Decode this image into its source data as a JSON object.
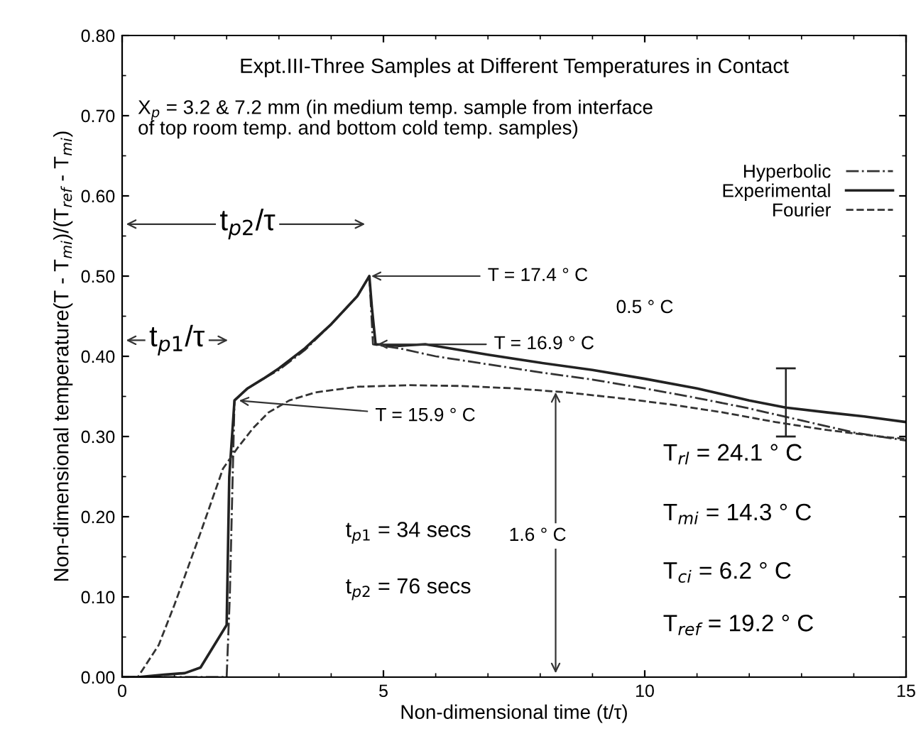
{
  "chart_data": {
    "type": "line",
    "title": "Expt.III-Three Samples at Different Temperatures in Contact",
    "subtitle": "X$_{p}$ = 3.2 & 7.2 mm (in medium temp. sample from interface\nof top room temp. and bottom cold temp. samples)",
    "xlabel": "Non-dimensional time (t/τ)",
    "ylabel": "Non-dimensional temperature(T - T$_{mi}$)/(T$_{ref}$ - T$_{mi}$)",
    "xlim": [
      0,
      15
    ],
    "xticks": [
      0,
      5,
      10,
      15
    ],
    "ylim": [
      0,
      0.8
    ],
    "yticks": [
      {
        "value": 0,
        "label": "0.00"
      },
      {
        "value": 0.1,
        "label": "0.10"
      },
      {
        "value": 0.2,
        "label": "0.20"
      },
      {
        "value": 0.3,
        "label": "0.30"
      },
      {
        "value": 0.4,
        "label": "0.40"
      },
      {
        "value": 0.5,
        "label": "0.50"
      },
      {
        "value": 0.6,
        "label": "0.60"
      },
      {
        "value": 0.7,
        "label": "0.70"
      },
      {
        "value": 0.8,
        "label": "0.80"
      }
    ],
    "grid": false,
    "legend": "top right",
    "series": [
      {
        "name": "Hyperbolic",
        "color": "#333333",
        "line_style": "dashdot",
        "x": [
          0,
          1.9,
          2.0,
          2.06,
          2.15,
          2.4,
          2.7,
          3,
          3.5,
          4,
          4.5,
          4.73,
          4.8,
          5.3,
          6,
          7,
          8,
          9,
          10,
          11,
          12,
          13,
          14,
          15
        ],
        "values": [
          0,
          0,
          0,
          0.1,
          0.345,
          0.36,
          0.372,
          0.383,
          0.408,
          0.44,
          0.475,
          0.5,
          0.415,
          0.41,
          0.4,
          0.39,
          0.38,
          0.371,
          0.36,
          0.348,
          0.335,
          0.32,
          0.305,
          0.295
        ]
      },
      {
        "name": "Experimental",
        "color": "#222222",
        "line_style": "solid",
        "x": [
          0,
          0.3,
          0.8,
          1.2,
          1.5,
          2.0,
          2.05,
          2.15,
          2.4,
          2.7,
          3.0,
          3.5,
          4.0,
          4.5,
          4.73,
          4.78,
          4.85,
          5.3,
          5.8,
          7,
          8,
          9,
          10,
          11,
          12,
          12.7,
          13.5,
          14.2,
          15
        ],
        "values": [
          0,
          0,
          0.003,
          0.005,
          0.012,
          0.065,
          0.25,
          0.345,
          0.36,
          0.372,
          0.385,
          0.41,
          0.44,
          0.475,
          0.5,
          0.46,
          0.415,
          0.413,
          0.415,
          0.402,
          0.392,
          0.383,
          0.372,
          0.36,
          0.345,
          0.336,
          0.33,
          0.325,
          0.318
        ],
        "errors": [
          null,
          null,
          null,
          null,
          null,
          null,
          null,
          null,
          null,
          null,
          null,
          null,
          null,
          null,
          null,
          null,
          null,
          null,
          null,
          null,
          null,
          null,
          null,
          null,
          null,
          [
            0.3,
            0.385
          ],
          null,
          null,
          null
        ]
      },
      {
        "name": "Fourier",
        "color": "#333333",
        "line_style": "dashed",
        "x": [
          0,
          0.3,
          0.7,
          1.0,
          1.5,
          1.93,
          2.2,
          2.5,
          2.8,
          3.2,
          3.7,
          4.5,
          5.5,
          6.5,
          7.5,
          8.5,
          9.5,
          10.5,
          11.5,
          12.5,
          13.5,
          14.5,
          15
        ],
        "values": [
          0,
          0,
          0.04,
          0.09,
          0.18,
          0.26,
          0.285,
          0.31,
          0.33,
          0.345,
          0.355,
          0.362,
          0.364,
          0.363,
          0.36,
          0.355,
          0.348,
          0.34,
          0.33,
          0.318,
          0.308,
          0.3,
          0.297
        ]
      }
    ],
    "annotations": [
      "t$_{p2}$/τ",
      "t$_{p1}$/τ",
      {
        "text": "T = 17.4 ° C",
        "x": 4.73,
        "y": 0.5
      },
      {
        "text": "T = 16.9 ° C",
        "x": 4.85,
        "y": 0.415
      },
      {
        "text": "T = 15.9 ° C",
        "x": 2.2,
        "y": 0.345
      },
      "1.6 ° C",
      "0.5 ° C",
      "t$_{p1}$ = 34 secs",
      "t$_{p2}$ = 76 secs",
      "T$_{rl}$ = 24.1 ° C",
      "T$_{mi}$ = 14.3 ° C",
      "T$_{ci}$ = 6.2 ° C",
      "T$_{ref}$ = 19.2 ° C"
    ]
  }
}
